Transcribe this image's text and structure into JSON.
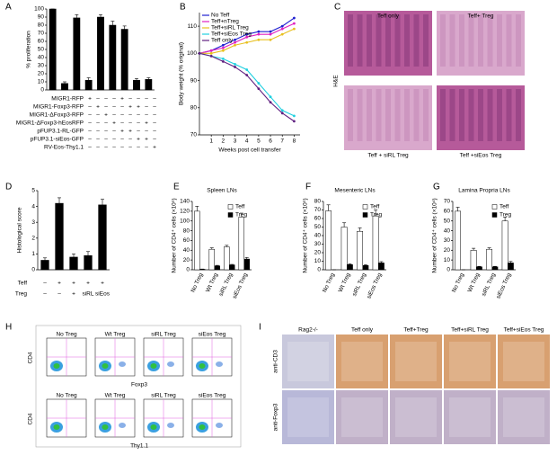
{
  "chart_data": [
    {
      "type": "bar",
      "panel": "A",
      "y_label": "% proliferation",
      "categories": [
        null,
        null,
        null,
        null,
        null,
        null,
        null,
        null,
        null
      ],
      "values": [
        100,
        8,
        89,
        12,
        90,
        80,
        75,
        12,
        13
      ],
      "errors": [
        0,
        2,
        4,
        3,
        3,
        5,
        4,
        2,
        2
      ],
      "color": "#000000",
      "ylim": [
        0,
        100
      ],
      "yticks": [
        0,
        10,
        20,
        30,
        40,
        50,
        60,
        70,
        80,
        90,
        100
      ],
      "table": [
        {
          "label": "MIGR1-RFP",
          "cells": [
            "+",
            "–",
            "–",
            "–",
            "+",
            "–",
            "–",
            "–",
            "–"
          ]
        },
        {
          "label": "MIGR1-Foxp3-RFP",
          "cells": [
            "–",
            "+",
            "–",
            "–",
            "–",
            "+",
            "+",
            "–",
            "–"
          ]
        },
        {
          "label": "MIGR1-ΔFoxp3-RFP",
          "cells": [
            "–",
            "–",
            "+",
            "–",
            "–",
            "–",
            "–",
            "–",
            "–"
          ]
        },
        {
          "label": "MIGR1-ΔFoxp3-hEosRFP",
          "cells": [
            "–",
            "–",
            "–",
            "+",
            "–",
            "–",
            "–",
            "+",
            "–"
          ]
        },
        {
          "label": "pFUP3.1-RL-GFP",
          "cells": [
            "–",
            "–",
            "–",
            "–",
            "+",
            "+",
            "–",
            "–",
            "–"
          ]
        },
        {
          "label": "pFUP3.1-siEos-GFP",
          "cells": [
            "–",
            "–",
            "–",
            "–",
            "–",
            "–",
            "+",
            "+",
            "–"
          ]
        },
        {
          "label": "RV-Eos-Thy1.1",
          "cells": [
            "–",
            "–",
            "–",
            "–",
            "–",
            "–",
            "–",
            "–",
            "+"
          ]
        }
      ]
    },
    {
      "type": "line",
      "panel": "B",
      "x_label": "Weeks post cell transfer",
      "y_label": "Body weight (% original)",
      "x": [
        0,
        1,
        2,
        3,
        4,
        5,
        6,
        7,
        8
      ],
      "xlim": [
        0,
        8.5
      ],
      "xticks": [
        1,
        2,
        3,
        4,
        5,
        6,
        7,
        8
      ],
      "ylim": [
        70,
        115
      ],
      "yticks": [
        70,
        80,
        90,
        100,
        110
      ],
      "series": [
        {
          "name": "No Teff",
          "color": "#1f1fd0",
          "values": [
            100,
            101,
            103,
            105,
            107,
            108,
            108,
            110,
            113
          ]
        },
        {
          "name": "Teff+nTreg",
          "color": "#e020c0",
          "values": [
            100,
            101,
            102,
            104,
            106,
            107,
            107,
            109,
            111
          ]
        },
        {
          "name": "Teff+siRL Treg",
          "color": "#e8c020",
          "values": [
            100,
            100,
            101,
            103,
            104,
            105,
            105,
            107,
            109
          ]
        },
        {
          "name": "Teff+siEos Treg",
          "color": "#20d0e0",
          "values": [
            100,
            99,
            98,
            96,
            94,
            89,
            84,
            79,
            77
          ]
        },
        {
          "name": "Teff only",
          "color": "#602080",
          "values": [
            100,
            99,
            97,
            95,
            92,
            87,
            82,
            78,
            75
          ]
        }
      ]
    },
    {
      "type": "bar",
      "panel": "D",
      "y_label": "Histological score",
      "categories": [
        null,
        null,
        null,
        null,
        null
      ],
      "values": [
        0.6,
        4.2,
        0.8,
        0.9,
        4.1
      ],
      "errors": [
        0.15,
        0.35,
        0.2,
        0.25,
        0.35
      ],
      "color": "#000000",
      "ylim": [
        0,
        5
      ],
      "yticks": [
        0,
        1,
        2,
        3,
        4,
        5
      ],
      "table": [
        {
          "label": "Teff",
          "cells": [
            "–",
            "+",
            "+",
            "+",
            "+"
          ]
        },
        {
          "label": "Treg",
          "cells": [
            "–",
            "–",
            "+",
            "siRL",
            "siEos"
          ]
        }
      ]
    },
    {
      "type": "bar",
      "panel": "E",
      "title": "Spleen LNs",
      "y_label": "Number of CD4⁺ cells (×10⁵)",
      "categories": [
        "No Treg",
        "Wt Treg",
        "siRL Treg",
        "siEos Treg"
      ],
      "ylim": [
        0,
        140
      ],
      "yticks": [
        0,
        20,
        40,
        60,
        80,
        100,
        120,
        140
      ],
      "series": [
        {
          "name": "Teff",
          "color": "#ffffff",
          "values": [
            120,
            42,
            47,
            108
          ],
          "errors": [
            10,
            3,
            3,
            8
          ]
        },
        {
          "name": "Treg",
          "color": "#000000",
          "values": [
            1,
            8,
            10,
            22
          ],
          "errors": [
            0.5,
            1,
            1,
            3
          ]
        }
      ]
    },
    {
      "type": "bar",
      "panel": "F",
      "title": "Mesenteric LNs",
      "y_label": "Number of CD4⁺ cells (×10⁵)",
      "categories": [
        "No Treg",
        "Wt Treg",
        "siRL Treg",
        "siEos Treg"
      ],
      "ylim": [
        0,
        80
      ],
      "yticks": [
        0,
        10,
        20,
        30,
        40,
        50,
        60,
        70,
        80
      ],
      "series": [
        {
          "name": "Teff",
          "color": "#ffffff",
          "values": [
            69,
            50,
            45,
            63
          ],
          "errors": [
            7,
            5,
            4,
            7
          ]
        },
        {
          "name": "Treg",
          "color": "#000000",
          "values": [
            0,
            6,
            5,
            8
          ],
          "errors": [
            0,
            1,
            1,
            1.5
          ]
        }
      ]
    },
    {
      "type": "bar",
      "panel": "G",
      "title": "Lamina Propria LNs",
      "y_label": "Number of CD4⁺ cells (×10⁴)",
      "categories": [
        "No Treg",
        "Wt Treg",
        "siRL Treg",
        "siEos Treg"
      ],
      "ylim": [
        0,
        70
      ],
      "yticks": [
        0,
        10,
        20,
        30,
        40,
        50,
        60,
        70
      ],
      "series": [
        {
          "name": "Teff",
          "color": "#ffffff",
          "values": [
            60,
            20,
            21,
            50
          ],
          "errors": [
            4,
            2,
            1.5,
            4
          ]
        },
        {
          "name": "Treg",
          "color": "#000000",
          "values": [
            0,
            3,
            3,
            7
          ],
          "errors": [
            0,
            0.5,
            0.5,
            1.5
          ]
        }
      ]
    }
  ],
  "panel_C": {
    "letter": "C",
    "stain": "H&E",
    "titles": [
      "Teff only",
      "Teff+ Treg",
      "Teff + siRL Treg",
      "Teff +siEos Treg"
    ]
  },
  "panel_H": {
    "letter": "H",
    "rows": [
      {
        "titles": [
          "No Treg",
          "Wt Treg",
          "siRL Treg",
          "siEos Treg"
        ],
        "y_label": "CD4",
        "x_label": "Foxp3"
      },
      {
        "titles": [
          "No Treg",
          "Wt Treg",
          "siRL Treg",
          "siEos Treg"
        ],
        "y_label": "CD4",
        "x_label": "Thy1.1"
      }
    ]
  },
  "panel_I": {
    "letter": "I",
    "columns": [
      "Rag2-/-",
      "Teff only",
      "Teff+Treg",
      "Teff+siRL Treg",
      "Teff+siEos Treg"
    ],
    "rows": [
      "anti-CD3",
      "anti-Foxp3"
    ]
  }
}
